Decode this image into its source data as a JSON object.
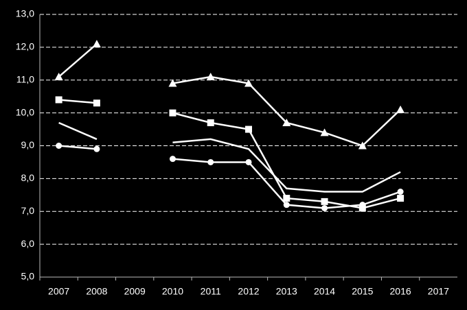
{
  "chart_data": {
    "type": "line",
    "categories": [
      "2007",
      "2008",
      "2009",
      "2010",
      "2011",
      "2012",
      "2013",
      "2014",
      "2015",
      "2016",
      "2017"
    ],
    "series": [
      {
        "color": "#ffffff",
        "marker": "triangle",
        "values": [
          11.1,
          12.1,
          null,
          10.9,
          11.1,
          10.9,
          9.7,
          9.4,
          9.0,
          10.1,
          null
        ]
      },
      {
        "color": "#ffffff",
        "marker": "square",
        "values": [
          10.4,
          10.3,
          null,
          10.0,
          9.7,
          9.5,
          7.4,
          7.3,
          7.1,
          7.4,
          null
        ]
      },
      {
        "color": "#ffffff",
        "marker": "none",
        "values": [
          9.7,
          9.2,
          null,
          9.1,
          9.2,
          8.9,
          7.7,
          7.6,
          7.6,
          8.2,
          null
        ]
      },
      {
        "color": "#ffffff",
        "marker": "circle",
        "values": [
          9.0,
          8.9,
          null,
          8.6,
          8.5,
          8.5,
          7.2,
          7.1,
          7.2,
          7.6,
          null
        ]
      }
    ],
    "ylim": [
      5,
      13
    ],
    "yticks": [
      {
        "value": 5,
        "label": "5,0"
      },
      {
        "value": 6,
        "label": "6,0"
      },
      {
        "value": 7,
        "label": "7,0"
      },
      {
        "value": 8,
        "label": "8,0"
      },
      {
        "value": 9,
        "label": "9,0"
      },
      {
        "value": 10,
        "label": "10,0"
      },
      {
        "value": 11,
        "label": "11,0"
      },
      {
        "value": 12,
        "label": "12,0"
      },
      {
        "value": 13,
        "label": "13,0"
      }
    ],
    "grid": true
  }
}
